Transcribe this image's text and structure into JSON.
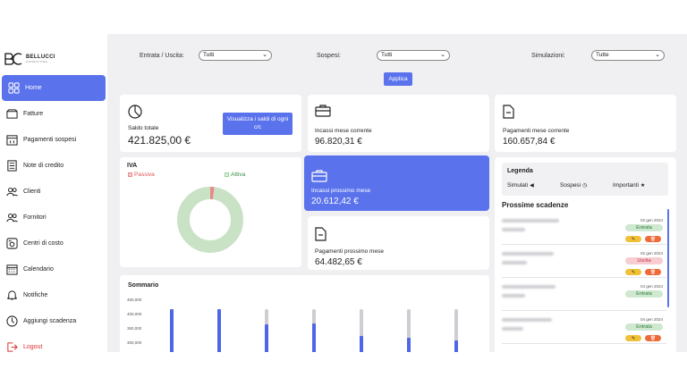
{
  "brand": {
    "name": "BELLUCCI",
    "sub": "CONSULTING"
  },
  "sidebar": {
    "items": [
      {
        "label": "Home",
        "icon": "grid-icon",
        "active": true
      },
      {
        "label": "Fatture",
        "icon": "folder-icon"
      },
      {
        "label": "Pagamenti sospesi",
        "icon": "calendar-pause-icon"
      },
      {
        "label": "Note di credito",
        "icon": "document-list-icon"
      },
      {
        "label": "Clienti",
        "icon": "users-icon"
      },
      {
        "label": "Fornitori",
        "icon": "users-icon"
      },
      {
        "label": "Centri di costo",
        "icon": "cost-center-icon"
      },
      {
        "label": "Calendario",
        "icon": "calendar-icon"
      },
      {
        "label": "Notifiche",
        "icon": "bell-icon"
      },
      {
        "label": "Aggiungi scadenza",
        "icon": "clock-icon"
      },
      {
        "label": "Logout",
        "icon": "logout-icon"
      }
    ]
  },
  "filters": {
    "entrata_uscita_label": "Entrata / Uscita:",
    "entrata_uscita_value": "Tutti",
    "sospesi_label": "Sospesi:",
    "sospesi_value": "Tutti",
    "simulazioni_label": "Simulazioni:",
    "simulazioni_value": "Tutte",
    "apply_label": "Applica"
  },
  "cards": {
    "saldo_label": "Saldo totale",
    "saldo_value": "421.825,00 €",
    "saldi_button": "Visualizza i saldi di ogni c/c",
    "incassi_corrente_label": "Incassi mese corrente",
    "incassi_corrente_value": "96.820,31 €",
    "pagamenti_corrente_label": "Pagamenti mese corrente",
    "pagamenti_corrente_value": "160.657,84 €",
    "incassi_prossimo_label": "Incassi prossimo mese",
    "incassi_prossimo_value": "20.612,42 €",
    "pagamenti_prossimo_label": "Pagamenti prossimo mese",
    "pagamenti_prossimo_value": "64.482,65 €"
  },
  "iva": {
    "title": "IVA",
    "passiva_label": "Passiva",
    "attiva_label": "Attiva",
    "passiva_fraction": 0.02,
    "colors": {
      "passiva": "#e88a8a",
      "attiva": "#c9e2c6"
    }
  },
  "legenda": {
    "title": "Legenda",
    "simulati": "Simulati",
    "sospesi": "Sospesi",
    "importanti": "Importanti"
  },
  "scadenze": {
    "title": "Prossime scadenze",
    "items": [
      {
        "date": "02 gen 2024",
        "type": "Entrata",
        "kind": "entrata",
        "actions": true
      },
      {
        "date": "02 gen 2024",
        "type": "Uscita",
        "kind": "uscita",
        "actions": true
      },
      {
        "date": "04 gen 2024",
        "type": "Entrata",
        "kind": "entrata",
        "actions": false
      },
      {
        "date": "04 gen 2024",
        "type": "Entrata",
        "kind": "entrata",
        "actions": true
      }
    ]
  },
  "sommario": {
    "title": "Sommario",
    "yticks": [
      "450,000",
      "400,000",
      "350,000",
      "300,000"
    ],
    "bars_fraction": [
      1.0,
      1.0,
      0.72,
      0.74,
      0.5,
      0.46,
      0.42
    ],
    "colors": {
      "fill": "#4f66e6",
      "track": "#cdcdd2"
    }
  }
}
